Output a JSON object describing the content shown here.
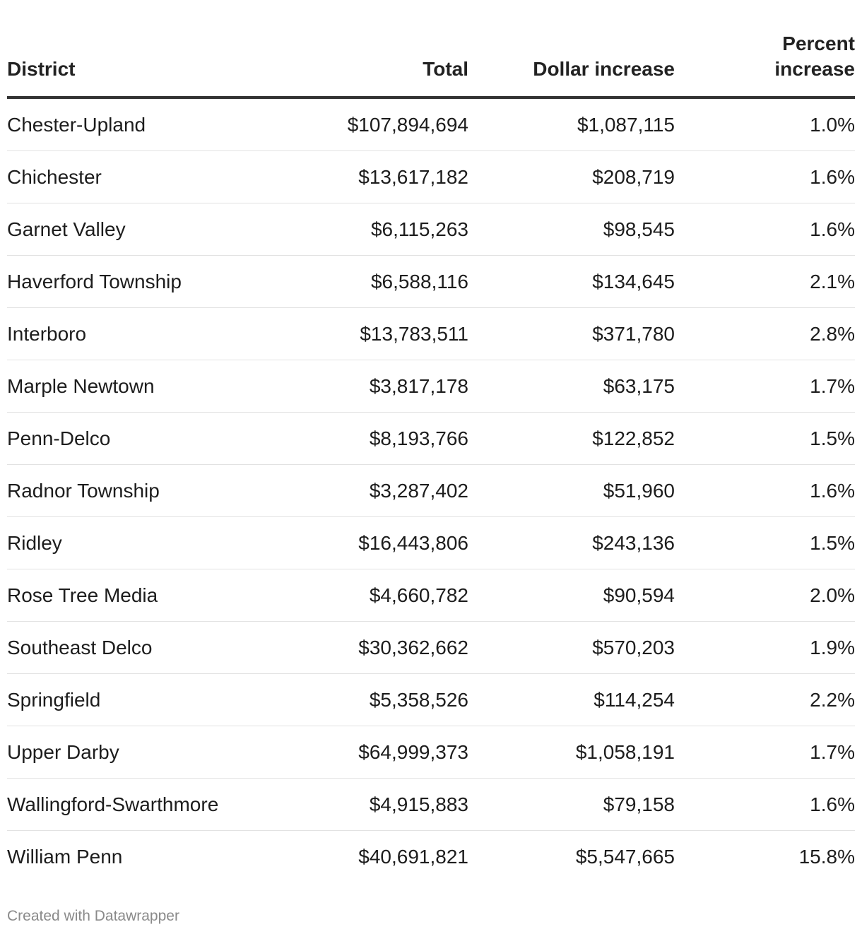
{
  "chart_data": {
    "type": "table",
    "columns": [
      "District",
      "Total",
      "Dollar increase",
      "Percent increase"
    ],
    "rows": [
      {
        "district": "Chester-Upland",
        "total": "$107,894,694",
        "dollar_increase": "$1,087,115",
        "percent_increase": "1.0%"
      },
      {
        "district": "Chichester",
        "total": "$13,617,182",
        "dollar_increase": "$208,719",
        "percent_increase": "1.6%"
      },
      {
        "district": "Garnet Valley",
        "total": "$6,115,263",
        "dollar_increase": "$98,545",
        "percent_increase": "1.6%"
      },
      {
        "district": "Haverford Township",
        "total": "$6,588,116",
        "dollar_increase": "$134,645",
        "percent_increase": "2.1%"
      },
      {
        "district": "Interboro",
        "total": "$13,783,511",
        "dollar_increase": "$371,780",
        "percent_increase": "2.8%"
      },
      {
        "district": "Marple Newtown",
        "total": "$3,817,178",
        "dollar_increase": "$63,175",
        "percent_increase": "1.7%"
      },
      {
        "district": "Penn-Delco",
        "total": "$8,193,766",
        "dollar_increase": "$122,852",
        "percent_increase": "1.5%"
      },
      {
        "district": "Radnor Township",
        "total": "$3,287,402",
        "dollar_increase": "$51,960",
        "percent_increase": "1.6%"
      },
      {
        "district": "Ridley",
        "total": "$16,443,806",
        "dollar_increase": "$243,136",
        "percent_increase": "1.5%"
      },
      {
        "district": "Rose Tree Media",
        "total": "$4,660,782",
        "dollar_increase": "$90,594",
        "percent_increase": "2.0%"
      },
      {
        "district": "Southeast Delco",
        "total": "$30,362,662",
        "dollar_increase": "$570,203",
        "percent_increase": "1.9%"
      },
      {
        "district": "Springfield",
        "total": "$5,358,526",
        "dollar_increase": "$114,254",
        "percent_increase": "2.2%"
      },
      {
        "district": "Upper Darby",
        "total": "$64,999,373",
        "dollar_increase": "$1,058,191",
        "percent_increase": "1.7%"
      },
      {
        "district": "Wallingford-Swarthmore",
        "total": "$4,915,883",
        "dollar_increase": "$79,158",
        "percent_increase": "1.6%"
      },
      {
        "district": "William Penn",
        "total": "$40,691,821",
        "dollar_increase": "$5,547,665",
        "percent_increase": "15.8%"
      }
    ]
  },
  "header": {
    "district": "District",
    "total": "Total",
    "dollar_increase": "Dollar increase",
    "percent_increase_line1": "Percent",
    "percent_increase_line2": "increase"
  },
  "footer": {
    "credit": "Created with Datawrapper"
  }
}
